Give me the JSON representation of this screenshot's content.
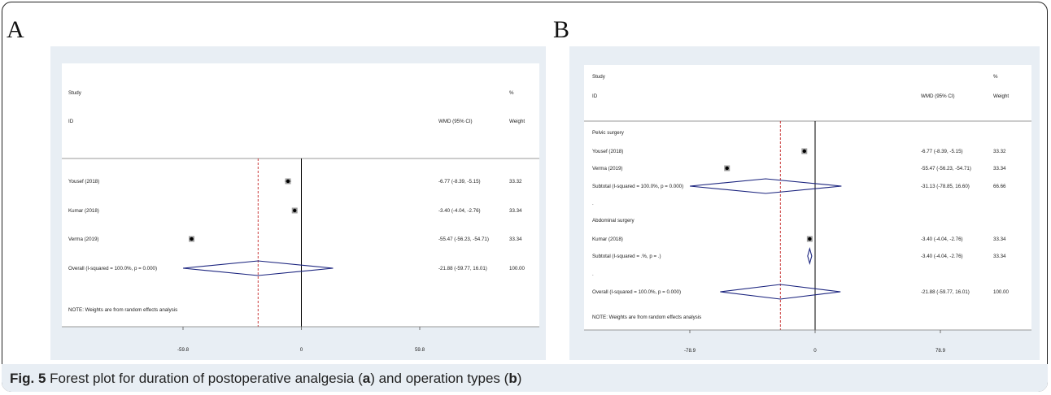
{
  "caption": {
    "prefix": "Fig. 5",
    "text_1": " Forest plot for duration of postoperative analgesia (",
    "letter_a": "a",
    "text_2": ") and operation types (",
    "letter_b": "b",
    "text_3": ")"
  },
  "panels": [
    {
      "letter": "A"
    },
    {
      "letter": "B"
    }
  ],
  "colors": {
    "diamond": "#1a237e",
    "reference_line": "#c62828",
    "marker": "#000000",
    "panel_background": "#e8eef4"
  },
  "chart_data": [
    {
      "type": "forest",
      "panel": "A",
      "header": {
        "study": "Study",
        "id": "ID",
        "effect": "WMD (95% CI)",
        "pct": "%",
        "weight": "Weight"
      },
      "rows": [
        {
          "kind": "study",
          "label": "Yousef (2018)",
          "est": -6.77,
          "lo": -8.39,
          "hi": -5.15,
          "ci_text": "-6.77 (-8.39, -5.15)",
          "weight": "33.32"
        },
        {
          "kind": "study",
          "label": "Kumar (2018)",
          "est": -3.4,
          "lo": -4.04,
          "hi": -2.76,
          "ci_text": "-3.40 (-4.04, -2.76)",
          "weight": "33.34"
        },
        {
          "kind": "study",
          "label": "Verma (2019)",
          "est": -55.47,
          "lo": -56.23,
          "hi": -54.71,
          "ci_text": "-55.47 (-56.23, -54.71)",
          "weight": "33.34"
        },
        {
          "kind": "overall",
          "label": "Overall  (I-squared = 100.0%, p = 0.000)",
          "est": -21.88,
          "lo": -59.77,
          "hi": 16.01,
          "ci_text": "-21.88 (-59.77, 16.01)",
          "weight": "100.00"
        }
      ],
      "note": "NOTE: Weights are from random effects analysis",
      "x_range": [
        -59.8,
        59.8
      ],
      "ticks": [
        -59.8,
        0,
        59.8
      ],
      "tick_labels": [
        "-59.8",
        "0",
        "59.8"
      ],
      "reference_value": -21.88
    },
    {
      "type": "forest",
      "panel": "B",
      "header": {
        "study": "Study",
        "id": "ID",
        "effect": "WMD (95% CI)",
        "pct": "%",
        "weight": "Weight"
      },
      "rows": [
        {
          "kind": "group",
          "label": "Pelvic surgery"
        },
        {
          "kind": "study",
          "label": "Yousef (2018)",
          "est": -6.77,
          "lo": -8.39,
          "hi": -5.15,
          "ci_text": "-6.77 (-8.39, -5.15)",
          "weight": "33.32"
        },
        {
          "kind": "study",
          "label": "Verma (2019)",
          "est": -55.47,
          "lo": -56.23,
          "hi": -54.71,
          "ci_text": "-55.47 (-56.23, -54.71)",
          "weight": "33.34"
        },
        {
          "kind": "subtotal",
          "label": "Subtotal  (I-squared = 100.0%, p = 0.000)",
          "est": -31.13,
          "lo": -78.85,
          "hi": 16.6,
          "ci_text": "-31.13 (-78.85, 16.60)",
          "weight": "66.66"
        },
        {
          "kind": "spacer",
          "label": "."
        },
        {
          "kind": "group",
          "label": "Abdominal surgery"
        },
        {
          "kind": "study",
          "label": "Kumar (2018)",
          "est": -3.4,
          "lo": -4.04,
          "hi": -2.76,
          "ci_text": "-3.40 (-4.04, -2.76)",
          "weight": "33.34"
        },
        {
          "kind": "subtotal",
          "label": "Subtotal  (I-squared = .%, p = .)",
          "est": -3.4,
          "lo": -4.04,
          "hi": -2.76,
          "ci_text": "-3.40 (-4.04, -2.76)",
          "weight": "33.34"
        },
        {
          "kind": "spacer",
          "label": "."
        },
        {
          "kind": "overall",
          "label": "Overall  (I-squared = 100.0%, p = 0.000)",
          "est": -21.88,
          "lo": -59.77,
          "hi": 16.01,
          "ci_text": "-21.88 (-59.77, 16.01)",
          "weight": "100.00"
        }
      ],
      "note": "NOTE: Weights are from random effects analysis",
      "x_range": [
        -78.9,
        78.9
      ],
      "ticks": [
        -78.9,
        0,
        78.9
      ],
      "tick_labels": [
        "-78.9",
        "0",
        "78.9"
      ],
      "reference_value": -21.88
    }
  ]
}
